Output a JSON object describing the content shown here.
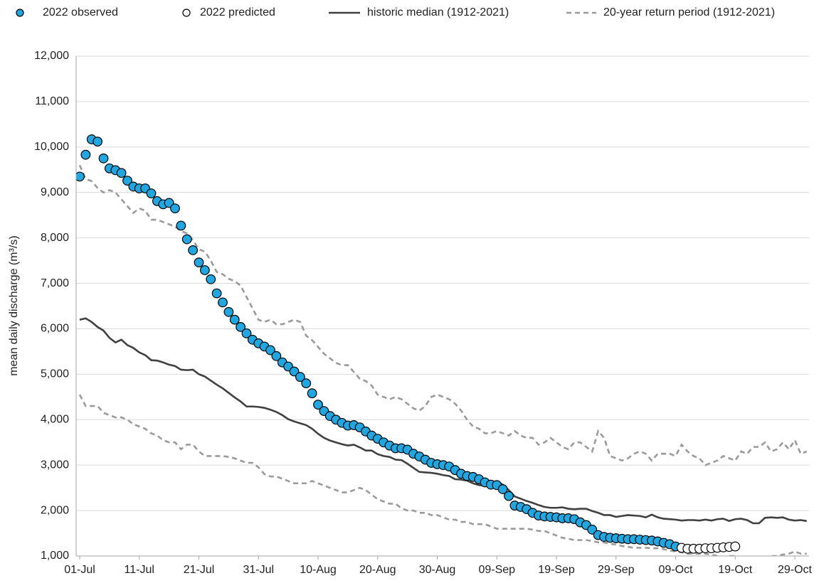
{
  "chart_data": {
    "type": "line",
    "y_label": "mean daily discharge (m³/s)",
    "categories": [
      "01-Jul",
      null,
      null,
      null,
      null,
      null,
      null,
      null,
      null,
      null,
      "11-Jul",
      null,
      null,
      null,
      null,
      null,
      null,
      null,
      null,
      null,
      "21-Jul",
      null,
      null,
      null,
      null,
      null,
      null,
      null,
      null,
      null,
      "31-Jul",
      null,
      null,
      null,
      null,
      null,
      null,
      null,
      null,
      null,
      "10-Aug",
      null,
      null,
      null,
      null,
      null,
      null,
      null,
      null,
      null,
      "20-Aug",
      null,
      null,
      null,
      null,
      null,
      null,
      null,
      null,
      null,
      "30-Aug",
      null,
      null,
      null,
      null,
      null,
      null,
      null,
      null,
      null,
      "09-Sep",
      null,
      null,
      null,
      null,
      null,
      null,
      null,
      null,
      null,
      "19-Sep",
      null,
      null,
      null,
      null,
      null,
      null,
      null,
      null,
      null,
      "29-Sep",
      null,
      null,
      null,
      null,
      null,
      null,
      null,
      null,
      null,
      "09-Oct",
      null,
      null,
      null,
      null,
      null,
      null,
      null,
      null,
      null,
      "19-Oct",
      null,
      null,
      null,
      null,
      null,
      null,
      null,
      null,
      null,
      "29-Oct",
      null,
      null
    ],
    "ylim": [
      1000,
      12000
    ],
    "yticks": [
      {
        "value": 1000,
        "label": "1,000"
      },
      {
        "value": 2000,
        "label": "2,000"
      },
      {
        "value": 3000,
        "label": "3,000"
      },
      {
        "value": 4000,
        "label": "4,000"
      },
      {
        "value": 5000,
        "label": "5,000"
      },
      {
        "value": 6000,
        "label": "6,000"
      },
      {
        "value": 7000,
        "label": "7,000"
      },
      {
        "value": 8000,
        "label": "8,000"
      },
      {
        "value": 9000,
        "label": "9,000"
      },
      {
        "value": 10000,
        "label": "10,000"
      },
      {
        "value": 11000,
        "label": "11,000"
      },
      {
        "value": 12000,
        "label": "12,000"
      }
    ],
    "grid": true,
    "series": [
      {
        "name": "2022 observed",
        "style": "marker",
        "color": "#1ea7e1",
        "values": [
          9350,
          9830,
          10170,
          10120,
          9750,
          9530,
          9490,
          9430,
          9260,
          9130,
          9090,
          9090,
          8980,
          8810,
          8740,
          8770,
          8650,
          8270,
          7970,
          7730,
          7460,
          7290,
          7090,
          6780,
          6580,
          6370,
          6200,
          6040,
          5900,
          5760,
          5680,
          5610,
          5530,
          5400,
          5260,
          5170,
          5060,
          4940,
          4800,
          4580,
          4330,
          4190,
          4080,
          4000,
          3930,
          3870,
          3880,
          3830,
          3740,
          3650,
          3580,
          3500,
          3430,
          3370,
          3370,
          3340,
          3250,
          3190,
          3120,
          3050,
          3020,
          3000,
          2970,
          2890,
          2810,
          2760,
          2740,
          2690,
          2620,
          2570,
          2560,
          2470,
          2320,
          2110,
          2080,
          2030,
          1950,
          1890,
          1870,
          1860,
          1850,
          1830,
          1830,
          1810,
          1740,
          1680,
          1580,
          1460,
          1420,
          1400,
          1390,
          1380,
          1370,
          1370,
          1360,
          1350,
          1340,
          1320,
          1290,
          1260,
          1210,
          null,
          null,
          null,
          null,
          null,
          null,
          null,
          null,
          null,
          null,
          null,
          null,
          null,
          null,
          null,
          null,
          null,
          null,
          null,
          null,
          null,
          null
        ]
      },
      {
        "name": "2022 predicted",
        "style": "hollow",
        "color": "#ffffff",
        "values": [
          null,
          null,
          null,
          null,
          null,
          null,
          null,
          null,
          null,
          null,
          null,
          null,
          null,
          null,
          null,
          null,
          null,
          null,
          null,
          null,
          null,
          null,
          null,
          null,
          null,
          null,
          null,
          null,
          null,
          null,
          null,
          null,
          null,
          null,
          null,
          null,
          null,
          null,
          null,
          null,
          null,
          null,
          null,
          null,
          null,
          null,
          null,
          null,
          null,
          null,
          null,
          null,
          null,
          null,
          null,
          null,
          null,
          null,
          null,
          null,
          null,
          null,
          null,
          null,
          null,
          null,
          null,
          null,
          null,
          null,
          null,
          null,
          null,
          null,
          null,
          null,
          null,
          null,
          null,
          null,
          null,
          null,
          null,
          null,
          null,
          null,
          null,
          null,
          null,
          null,
          null,
          null,
          null,
          null,
          null,
          null,
          null,
          null,
          null,
          null,
          null,
          1180,
          1160,
          1160,
          1160,
          1170,
          1170,
          1180,
          1190,
          1200,
          1210,
          null,
          null,
          null,
          null,
          null,
          null,
          null,
          null,
          null,
          null,
          null,
          null
        ]
      },
      {
        "name": "historic median (1912-2021)",
        "style": "solid",
        "color": "#404040",
        "values": [
          6200,
          6230,
          6150,
          6040,
          5960,
          5800,
          5700,
          5760,
          5640,
          5580,
          5480,
          5420,
          5310,
          5300,
          5260,
          5210,
          5180,
          5100,
          5090,
          5100,
          5000,
          4950,
          4860,
          4770,
          4690,
          4590,
          4490,
          4400,
          4290,
          4290,
          4280,
          4260,
          4220,
          4170,
          4100,
          4010,
          3960,
          3920,
          3880,
          3800,
          3690,
          3600,
          3540,
          3500,
          3460,
          3430,
          3450,
          3390,
          3320,
          3320,
          3240,
          3200,
          3180,
          3120,
          3110,
          3030,
          2940,
          2850,
          2840,
          2830,
          2810,
          2780,
          2760,
          2690,
          2680,
          2660,
          2600,
          2560,
          2550,
          2570,
          2640,
          2570,
          2450,
          2310,
          2260,
          2210,
          2170,
          2120,
          2080,
          2060,
          2060,
          2070,
          2040,
          2030,
          2040,
          2040,
          1990,
          1950,
          1900,
          1900,
          1860,
          1880,
          1900,
          1890,
          1880,
          1850,
          1910,
          1850,
          1820,
          1810,
          1800,
          1780,
          1790,
          1790,
          1780,
          1800,
          1780,
          1810,
          1820,
          1770,
          1810,
          1820,
          1790,
          1720,
          1720,
          1840,
          1850,
          1840,
          1850,
          1800,
          1780,
          1790,
          1770
        ]
      },
      {
        "name": "20-year return period (1912-2021)",
        "style": "dashed",
        "color": "#9a9a9a",
        "values": [
          9600,
          9300,
          9250,
          9100,
          9000,
          9050,
          9000,
          8850,
          8700,
          8550,
          8650,
          8600,
          8400,
          8400,
          8350,
          8300,
          8250,
          8150,
          8100,
          7950,
          7750,
          7700,
          7500,
          7250,
          7200,
          7100,
          7050,
          6950,
          6700,
          6450,
          6200,
          6150,
          6200,
          6100,
          6100,
          6150,
          6200,
          6150,
          5850,
          5750,
          5600,
          5450,
          5350,
          5250,
          5200,
          5200,
          5050,
          4900,
          4850,
          4750,
          4550,
          4500,
          4450,
          4500,
          4450,
          4350,
          4250,
          4200,
          4300,
          4500,
          4550,
          4500,
          4450,
          4350,
          4200,
          4000,
          3850,
          3800,
          3700,
          3700,
          3750,
          3700,
          3650,
          3750,
          3650,
          3600,
          3600,
          3450,
          3500,
          3600,
          3500,
          3400,
          3350,
          3500,
          3500,
          3400,
          3300,
          3750,
          3600,
          3200,
          3150,
          3100,
          3150,
          3250,
          3300,
          3250,
          3100,
          3250,
          3250,
          3250,
          3200,
          3450,
          3300,
          3200,
          3150,
          3000,
          3050,
          3100,
          3200,
          3150,
          3100,
          3300,
          3250,
          3400,
          3400,
          3500,
          3300,
          3350,
          3500,
          3350,
          3550,
          3250,
          3300
        ]
      },
      {
        "style": "dashed",
        "color": "#9a9a9a",
        "values": [
          4550,
          4300,
          4300,
          4300,
          4150,
          4100,
          4050,
          4050,
          4000,
          3900,
          3850,
          3800,
          3700,
          3650,
          3550,
          3500,
          3500,
          3350,
          3450,
          3450,
          3300,
          3200,
          3200,
          3200,
          3200,
          3180,
          3150,
          3100,
          3050,
          3050,
          2950,
          2800,
          2750,
          2750,
          2700,
          2650,
          2600,
          2600,
          2600,
          2650,
          2600,
          2550,
          2500,
          2450,
          2400,
          2400,
          2450,
          2500,
          2450,
          2350,
          2250,
          2200,
          2150,
          2150,
          2050,
          2000,
          2000,
          1950,
          1950,
          1900,
          1900,
          1850,
          1800,
          1800,
          1750,
          1750,
          1700,
          1700,
          1700,
          1650,
          1600,
          1600,
          1600,
          1600,
          1600,
          1600,
          1580,
          1550,
          1550,
          1500,
          1450,
          1400,
          1380,
          1350,
          1350,
          1350,
          1330,
          1300,
          1300,
          1270,
          1250,
          1220,
          1200,
          1180,
          1180,
          1180,
          1170,
          1170,
          1150,
          1120,
          1100,
          1080,
          1050,
          1050,
          1050,
          1050,
          1030,
          1000,
          980,
          1000,
          1000,
          980,
          970,
          960,
          950,
          970,
          1000,
          1000,
          1030,
          1050,
          1100,
          1050,
          1050
        ]
      }
    ]
  }
}
